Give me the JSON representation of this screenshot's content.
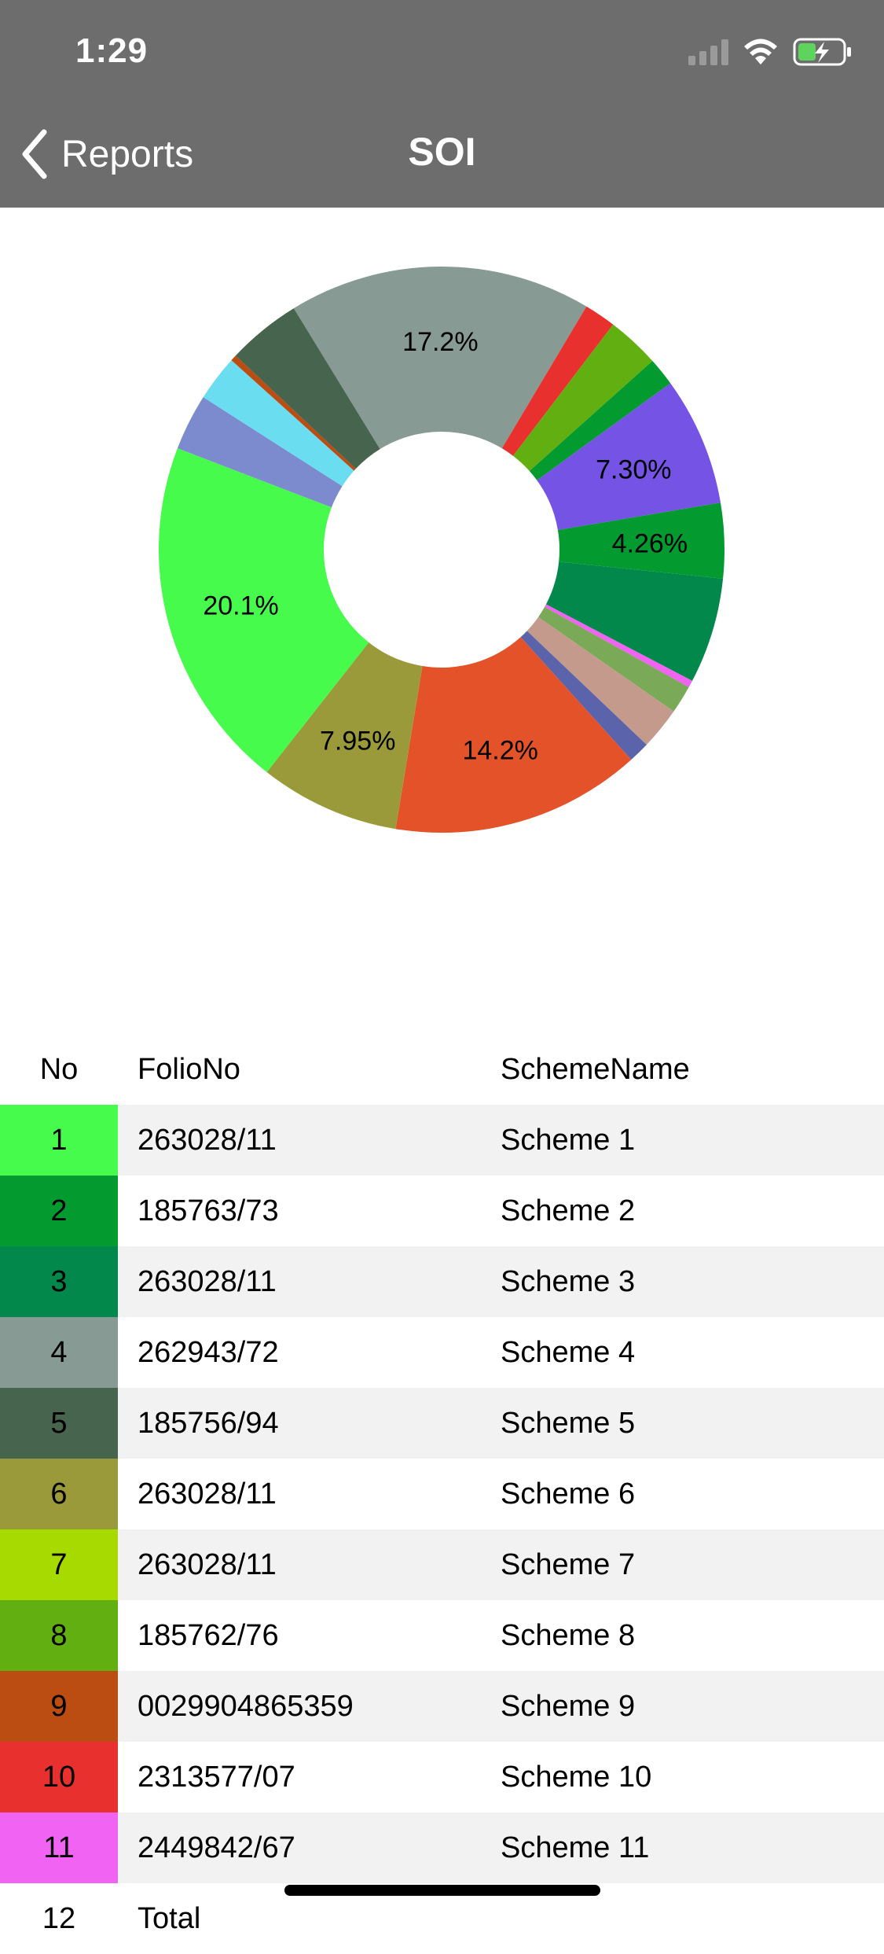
{
  "status_bar": {
    "time": "1:29"
  },
  "nav": {
    "back_label": "Reports",
    "title": "SOI"
  },
  "chart_data": {
    "type": "pie",
    "donut": true,
    "slices": [
      {
        "value": 17.2,
        "color": "#879a93",
        "label": "17.2%"
      },
      {
        "value": 1.8,
        "color": "#e8312e",
        "label": ""
      },
      {
        "value": 3.0,
        "color": "#62af12",
        "label": ""
      },
      {
        "value": 1.6,
        "color": "#039b30",
        "label": ""
      },
      {
        "value": 7.3,
        "color": "#7553e5",
        "label": "7.30%"
      },
      {
        "value": 4.26,
        "color": "#039b30",
        "label": "4.26%"
      },
      {
        "value": 6.0,
        "color": "#01884a",
        "label": ""
      },
      {
        "value": 0.4,
        "color": "#f163f2",
        "label": ""
      },
      {
        "value": 1.6,
        "color": "#7aa957",
        "label": ""
      },
      {
        "value": 2.4,
        "color": "#c39a8c",
        "label": ""
      },
      {
        "value": 1.2,
        "color": "#5b64aa",
        "label": ""
      },
      {
        "value": 14.2,
        "color": "#e35229",
        "label": "14.2%"
      },
      {
        "value": 7.95,
        "color": "#9a9a3a",
        "label": "7.95%"
      },
      {
        "value": 20.1,
        "color": "#47fb4d",
        "label": "20.1%"
      },
      {
        "value": 3.2,
        "color": "#7c8ace",
        "label": ""
      },
      {
        "value": 2.6,
        "color": "#6addf0",
        "label": ""
      },
      {
        "value": 0.35,
        "color": "#bc4d12",
        "label": ""
      },
      {
        "value": 4.2,
        "color": "#47644e",
        "label": ""
      }
    ]
  },
  "table": {
    "headers": {
      "no": "No",
      "folio": "FolioNo",
      "scheme": "SchemeName"
    },
    "rows": [
      {
        "no": "1",
        "folio": "263028/11",
        "scheme": "Scheme 1",
        "color": "#47fb4d"
      },
      {
        "no": "2",
        "folio": "185763/73",
        "scheme": "Scheme 2",
        "color": "#039b30"
      },
      {
        "no": "3",
        "folio": "263028/11",
        "scheme": "Scheme 3",
        "color": "#01884a"
      },
      {
        "no": "4",
        "folio": "262943/72",
        "scheme": "Scheme 4",
        "color": "#879a93"
      },
      {
        "no": "5",
        "folio": "185756/94",
        "scheme": "Scheme 5",
        "color": "#47644e"
      },
      {
        "no": "6",
        "folio": "263028/11",
        "scheme": "Scheme 6",
        "color": "#9a9a3a"
      },
      {
        "no": "7",
        "folio": "263028/11",
        "scheme": "Scheme 7",
        "color": "#a7db00"
      },
      {
        "no": "8",
        "folio": "185762/76",
        "scheme": "Scheme 8",
        "color": "#62af12"
      },
      {
        "no": "9",
        "folio": "0029904865359",
        "scheme": "Scheme 9",
        "color": "#bc4d12"
      },
      {
        "no": "10",
        "folio": "2313577/07",
        "scheme": "Scheme 10",
        "color": "#e8312e"
      },
      {
        "no": "11",
        "folio": "2449842/67",
        "scheme": "Scheme 11",
        "color": "#f163f2"
      },
      {
        "no": "12",
        "folio": "Total",
        "scheme": "",
        "color": "#ffffff"
      }
    ]
  }
}
